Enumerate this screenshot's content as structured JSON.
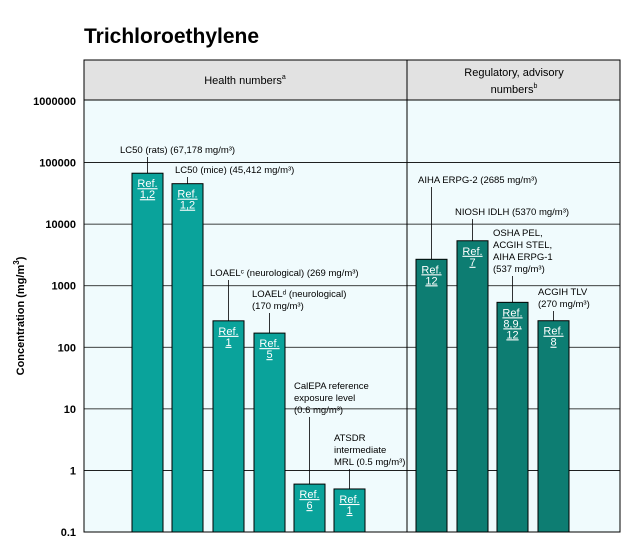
{
  "chart_data": {
    "type": "bar",
    "title": "Trichloroethylene",
    "ylabel": "Concentration (mg/m",
    "ylabel_sup": "3",
    "ylabel_close": ")",
    "yscale": "log",
    "ylim": [
      0.1,
      1000000
    ],
    "yticks": [
      "1000000",
      "100000",
      "10000",
      "1000",
      "100",
      "10",
      "1",
      "0.1"
    ],
    "yticks_values": [
      1000000,
      100000,
      10000,
      1000,
      100,
      10,
      1,
      0.1
    ],
    "grid": true,
    "groups": [
      {
        "name": "Health numbers",
        "name_sup": "a",
        "color": "#0aa39b",
        "bars": [
          {
            "value": 67178,
            "ref": [
              "Ref.",
              "1,2"
            ],
            "annotation": [
              "LC50 (rats) (67,178 mg/m³)"
            ]
          },
          {
            "value": 45412,
            "ref": [
              "Ref.",
              "1,2"
            ],
            "annotation": [
              "LC50 (mice) (45,412 mg/m³)"
            ]
          },
          {
            "value": 269,
            "ref": [
              "Ref.",
              "1"
            ],
            "annotation": [
              "LOAELᶜ (neurological) (269 mg/m³)"
            ]
          },
          {
            "value": 170,
            "ref": [
              "Ref.",
              "5"
            ],
            "annotation": [
              "LOAELᵈ (neurological)",
              "(170 mg/m³)"
            ]
          },
          {
            "value": 0.6,
            "ref": [
              "Ref.",
              "6"
            ],
            "annotation": [
              "CalEPA reference",
              "exposure level",
              "(0.6 mg/m³)"
            ]
          },
          {
            "value": 0.5,
            "ref": [
              "Ref.",
              "1"
            ],
            "annotation": [
              "ATSDR",
              "intermediate",
              "MRL (0.5 mg/m³)"
            ]
          }
        ]
      },
      {
        "name_lines": [
          "Regulatory, advisory",
          "numbers"
        ],
        "name_sup": "b",
        "color": "#0d7d72",
        "bars": [
          {
            "value": 2685,
            "ref": [
              "Ref.",
              "12"
            ],
            "annotation": [
              "AIHA ERPG-2  (2685 mg/m³)"
            ]
          },
          {
            "value": 5370,
            "ref": [
              "Ref.",
              "7"
            ],
            "annotation": [
              "NIOSH IDLH  (5370 mg/m³)"
            ]
          },
          {
            "value": 537,
            "ref": [
              "Ref.",
              "8,9,",
              "12"
            ],
            "annotation": [
              "OSHA PEL,",
              "ACGIH STEL,",
              "AIHA ERPG-1",
              "(537 mg/m³)"
            ]
          },
          {
            "value": 270,
            "ref": [
              "Ref.",
              "8"
            ],
            "annotation": [
              "ACGIH TLV",
              "(270 mg/m³)"
            ]
          }
        ]
      }
    ]
  },
  "colors": {
    "plot_bg": "#f0fbfd",
    "header_bg": "#e2e2e2",
    "health_bar": "#0aa39b",
    "regulatory_bar": "#0d7d72",
    "bar_text": "#ffffff"
  }
}
